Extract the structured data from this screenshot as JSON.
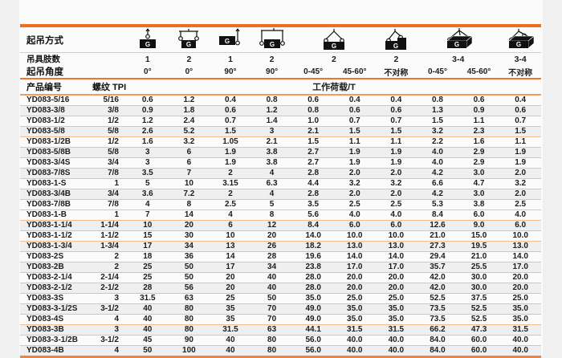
{
  "header": {
    "lift_method_label": "起吊方式",
    "legs_label": "吊具肢数",
    "angle_label": "起吊角度",
    "product_label": "产品编号",
    "thread_label": "螺纹 TPI",
    "load_label": "工作荷载/T",
    "icons": [
      {
        "name": "sling-1leg-vertical-icon",
        "span": 1
      },
      {
        "name": "sling-2leg-vertical-icon",
        "span": 1
      },
      {
        "name": "sling-1leg-side-90-icon",
        "span": 1
      },
      {
        "name": "sling-2leg-side-90-icon",
        "span": 1
      },
      {
        "name": "sling-2leg-angle-icon",
        "span": 2
      },
      {
        "name": "sling-2leg-asymmetric-icon",
        "span": 1
      },
      {
        "name": "sling-3-4leg-angle-icon",
        "span": 2
      },
      {
        "name": "sling-3-4leg-asymmetric-icon",
        "span": 1
      }
    ],
    "legs": [
      {
        "value": "1",
        "span": 1
      },
      {
        "value": "2",
        "span": 1
      },
      {
        "value": "1",
        "span": 1
      },
      {
        "value": "2",
        "span": 1
      },
      {
        "value": "2",
        "span": 2
      },
      {
        "value": "2",
        "span": 1
      },
      {
        "value": "3-4",
        "span": 2
      },
      {
        "value": "3-4",
        "span": 1
      }
    ],
    "angles": [
      "0°",
      "0°",
      "90°",
      "90°",
      "0-45°",
      "45-60°",
      "不对称",
      "0-45°",
      "45-60°",
      "不对称"
    ]
  },
  "colors": {
    "accent_orange": "#f06e24",
    "peach_separator": "#f6c69e",
    "stripe_gray": "#efeff1"
  },
  "rows": [
    {
      "product": "YD083-5/16",
      "tpi": "5/16",
      "loads": [
        "0.6",
        "1.2",
        "0.4",
        "0.8",
        "0.6",
        "0.4",
        "0.4",
        "0.8",
        "0.6",
        "0.4"
      ]
    },
    {
      "product": "YD083-3/8",
      "tpi": "3/8",
      "loads": [
        "0.9",
        "1.8",
        "0.6",
        "1.2",
        "0.8",
        "0.6",
        "0.6",
        "1.3",
        "0.9",
        "0.6"
      ]
    },
    {
      "product": "YD083-1/2",
      "tpi": "1/2",
      "loads": [
        "1.2",
        "2.4",
        "0.7",
        "1.4",
        "1.0",
        "0.7",
        "0.7",
        "1.5",
        "1.1",
        "0.7"
      ]
    },
    {
      "product": "YD083-5/8",
      "tpi": "5/8",
      "loads": [
        "2.6",
        "5.2",
        "1.5",
        "3",
        "2.1",
        "1.5",
        "1.5",
        "3.2",
        "2.3",
        "1.5"
      ]
    },
    {
      "product": "YD083-1/2B",
      "tpi": "1/2",
      "loads": [
        "1.6",
        "3.2",
        "1.05",
        "2.1",
        "1.5",
        "1.1",
        "1.1",
        "2.2",
        "1.6",
        "1.1"
      ]
    },
    {
      "product": "YD083-5/8B",
      "tpi": "5/8",
      "loads": [
        "3",
        "6",
        "1.9",
        "3.8",
        "2.7",
        "1.9",
        "1.9",
        "4.0",
        "2.9",
        "1.9"
      ]
    },
    {
      "product": "YD083-3/4S",
      "tpi": "3/4",
      "loads": [
        "3",
        "6",
        "1.9",
        "3.8",
        "2.7",
        "1.9",
        "1.9",
        "4.0",
        "2.9",
        "1.9"
      ]
    },
    {
      "product": "YD083-7/8S",
      "tpi": "7/8",
      "loads": [
        "3.5",
        "7",
        "2",
        "4",
        "2.8",
        "2.0",
        "2.0",
        "4.2",
        "3.0",
        "2.0"
      ]
    },
    {
      "product": "YD083-1-S",
      "tpi": "1",
      "loads": [
        "5",
        "10",
        "3.15",
        "6.3",
        "4.4",
        "3.2",
        "3.2",
        "6.6",
        "4.7",
        "3.2"
      ]
    },
    {
      "product": "YD083-3/4B",
      "tpi": "3/4",
      "loads": [
        "3.6",
        "7.2",
        "2",
        "4",
        "2.8",
        "2.0",
        "2.0",
        "4.2",
        "3.0",
        "2.0"
      ]
    },
    {
      "product": "YD083-7/8B",
      "tpi": "7/8",
      "loads": [
        "4",
        "8",
        "2.5",
        "5",
        "3.5",
        "2.5",
        "2.5",
        "5.3",
        "3.8",
        "2.5"
      ]
    },
    {
      "product": "YD083-1-B",
      "tpi": "1",
      "loads": [
        "7",
        "14",
        "4",
        "8",
        "5.6",
        "4.0",
        "4.0",
        "8.4",
        "6.0",
        "4.0"
      ]
    },
    {
      "product": "YD083-1-1/4",
      "tpi": "1-1/4",
      "loads": [
        "10",
        "20",
        "6",
        "12",
        "8.4",
        "6.0",
        "6.0",
        "12.6",
        "9.0",
        "6.0"
      ]
    },
    {
      "product": "YD083-1-1/2",
      "tpi": "1-1/2",
      "loads": [
        "15",
        "30",
        "10",
        "20",
        "14.0",
        "10.0",
        "10.0",
        "21.0",
        "15.0",
        "10.0"
      ]
    },
    {
      "product": "YD083-1-3/4",
      "tpi": "1-3/4",
      "loads": [
        "17",
        "34",
        "13",
        "26",
        "18.2",
        "13.0",
        "13.0",
        "27.3",
        "19.5",
        "13.0"
      ]
    },
    {
      "product": "YD083-2S",
      "tpi": "2",
      "loads": [
        "18",
        "36",
        "14",
        "28",
        "19.6",
        "14.0",
        "14.0",
        "29.4",
        "21.0",
        "14.0"
      ]
    },
    {
      "product": "YD083-2B",
      "tpi": "2",
      "loads": [
        "25",
        "50",
        "17",
        "34",
        "23.8",
        "17.0",
        "17.0",
        "35.7",
        "25.5",
        "17.0"
      ]
    },
    {
      "product": "YD083-2-1/4",
      "tpi": "2-1/4",
      "loads": [
        "25",
        "50",
        "20",
        "40",
        "28.0",
        "20.0",
        "20.0",
        "42.0",
        "30.0",
        "20.0"
      ]
    },
    {
      "product": "YD083-2-1/2",
      "tpi": "2-1/2",
      "loads": [
        "28",
        "56",
        "20",
        "40",
        "28.0",
        "20.0",
        "20.0",
        "42.0",
        "30.0",
        "20.0"
      ]
    },
    {
      "product": "YD083-3S",
      "tpi": "3",
      "loads": [
        "31.5",
        "63",
        "25",
        "50",
        "35.0",
        "25.0",
        "25.0",
        "52.5",
        "37.5",
        "25.0"
      ]
    },
    {
      "product": "YD083-3-1/2S",
      "tpi": "3-1/2",
      "loads": [
        "40",
        "80",
        "35",
        "70",
        "49.0",
        "35.0",
        "35.0",
        "73.5",
        "52.5",
        "35.0"
      ]
    },
    {
      "product": "YD083-4S",
      "tpi": "4",
      "loads": [
        "40",
        "80",
        "35",
        "70",
        "49.0",
        "35.0",
        "35.0",
        "73.5",
        "52.5",
        "35.0"
      ]
    },
    {
      "product": "YD083-3B",
      "tpi": "3",
      "loads": [
        "40",
        "80",
        "31.5",
        "63",
        "44.1",
        "31.5",
        "31.5",
        "66.2",
        "47.3",
        "31.5"
      ]
    },
    {
      "product": "YD083-3-1/2B",
      "tpi": "3-1/2",
      "loads": [
        "45",
        "90",
        "40",
        "80",
        "56.0",
        "40.0",
        "40.0",
        "84.0",
        "60.0",
        "40.0"
      ]
    },
    {
      "product": "YD083-4B",
      "tpi": "4",
      "loads": [
        "50",
        "100",
        "40",
        "80",
        "56.0",
        "40.0",
        "40.0",
        "84.0",
        "60.0",
        "40.0"
      ]
    }
  ]
}
